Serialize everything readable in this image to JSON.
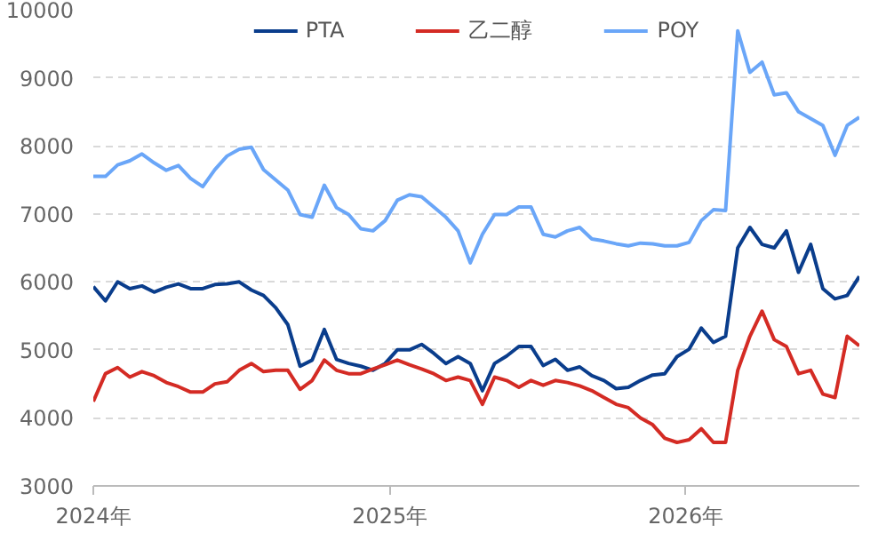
{
  "chart_data": {
    "type": "line",
    "x": [
      "2024-01-01",
      "2024-01-16",
      "2024-01-31",
      "2024-02-15",
      "2024-03-01",
      "2024-03-16",
      "2024-03-31",
      "2024-04-15",
      "2024-04-30",
      "2024-05-15",
      "2024-05-30",
      "2024-06-14",
      "2024-06-29",
      "2024-07-14",
      "2024-07-29",
      "2024-08-13",
      "2024-08-28",
      "2024-09-12",
      "2024-09-27",
      "2024-10-12",
      "2024-10-27",
      "2024-11-11",
      "2024-11-26",
      "2024-12-11",
      "2024-12-26",
      "2025-01-10",
      "2025-01-25",
      "2025-02-09",
      "2025-02-24",
      "2025-03-11",
      "2025-03-26",
      "2025-04-10",
      "2025-04-25",
      "2025-05-10",
      "2025-05-25",
      "2025-06-09",
      "2025-06-24",
      "2025-07-09",
      "2025-07-24",
      "2025-08-08",
      "2025-08-23",
      "2025-09-07",
      "2025-09-22",
      "2025-10-07",
      "2025-10-22",
      "2025-11-06",
      "2025-11-21",
      "2025-12-06",
      "2025-12-21",
      "2026-01-05",
      "2026-01-20",
      "2026-02-04",
      "2026-02-19",
      "2026-03-06",
      "2026-03-21",
      "2026-04-05",
      "2026-04-20",
      "2026-05-05",
      "2026-05-20",
      "2026-06-04",
      "2026-06-19",
      "2026-07-04",
      "2026-07-19",
      "2026-08-03"
    ],
    "series": [
      {
        "name": "PTA",
        "color": "#0a3d8c",
        "values": [
          5930,
          5720,
          6000,
          5900,
          5940,
          5850,
          5920,
          5970,
          5900,
          5900,
          5960,
          5970,
          6000,
          5880,
          5800,
          5620,
          5370,
          4760,
          4850,
          5300,
          4860,
          4800,
          4760,
          4700,
          4800,
          5000,
          5000,
          5080,
          4950,
          4800,
          4900,
          4800,
          4400,
          4800,
          4910,
          5050,
          5050,
          4770,
          4860,
          4700,
          4750,
          4620,
          4550,
          4430,
          4450,
          4550,
          4630,
          4650,
          4900,
          5010,
          5320,
          5110,
          5200,
          6500,
          6800,
          6550,
          6500,
          6750,
          6140,
          6550,
          5900,
          5750,
          5800,
          6080
        ]
      },
      {
        "name": "乙二醇",
        "color": "#d42b24",
        "values": [
          4240,
          4650,
          4740,
          4600,
          4680,
          4620,
          4520,
          4460,
          4380,
          4380,
          4500,
          4530,
          4700,
          4800,
          4680,
          4700,
          4700,
          4420,
          4550,
          4850,
          4700,
          4650,
          4650,
          4720,
          4780,
          4850,
          4780,
          4720,
          4650,
          4550,
          4600,
          4550,
          4200,
          4600,
          4550,
          4450,
          4550,
          4480,
          4550,
          4520,
          4470,
          4400,
          4300,
          4200,
          4150,
          4000,
          3900,
          3700,
          3640,
          3680,
          3840,
          3640,
          3640,
          4700,
          5200,
          5570,
          5150,
          5050,
          4650,
          4700,
          4350,
          4300,
          5200,
          5060
        ]
      },
      {
        "name": "POY",
        "color": "#6aa6f8",
        "values": [
          7550,
          7550,
          7720,
          7780,
          7880,
          7750,
          7640,
          7710,
          7520,
          7400,
          7650,
          7850,
          7950,
          7980,
          7650,
          7500,
          7350,
          6990,
          6950,
          7420,
          7090,
          6990,
          6780,
          6750,
          6900,
          7200,
          7280,
          7250,
          7100,
          6950,
          6750,
          6280,
          6700,
          6990,
          6990,
          7100,
          7100,
          6700,
          6660,
          6750,
          6800,
          6630,
          6600,
          6560,
          6530,
          6570,
          6560,
          6530,
          6530,
          6580,
          6900,
          7060,
          7050,
          9690,
          9080,
          9230,
          8750,
          8780,
          8500,
          8400,
          8300,
          7860,
          8300,
          8420
        ]
      }
    ],
    "xlim": [
      "2024-01-01",
      "2026-08-03"
    ],
    "xticks": [
      {
        "value": "2024",
        "label": "2024年"
      },
      {
        "value": "2025",
        "label": "2025年"
      },
      {
        "value": "2026",
        "label": "2026年"
      }
    ],
    "ylim": [
      3000,
      10000
    ],
    "yticks": [
      3000,
      4000,
      5000,
      6000,
      7000,
      8000,
      9000,
      10000
    ],
    "grid": "y",
    "legend": "top"
  }
}
